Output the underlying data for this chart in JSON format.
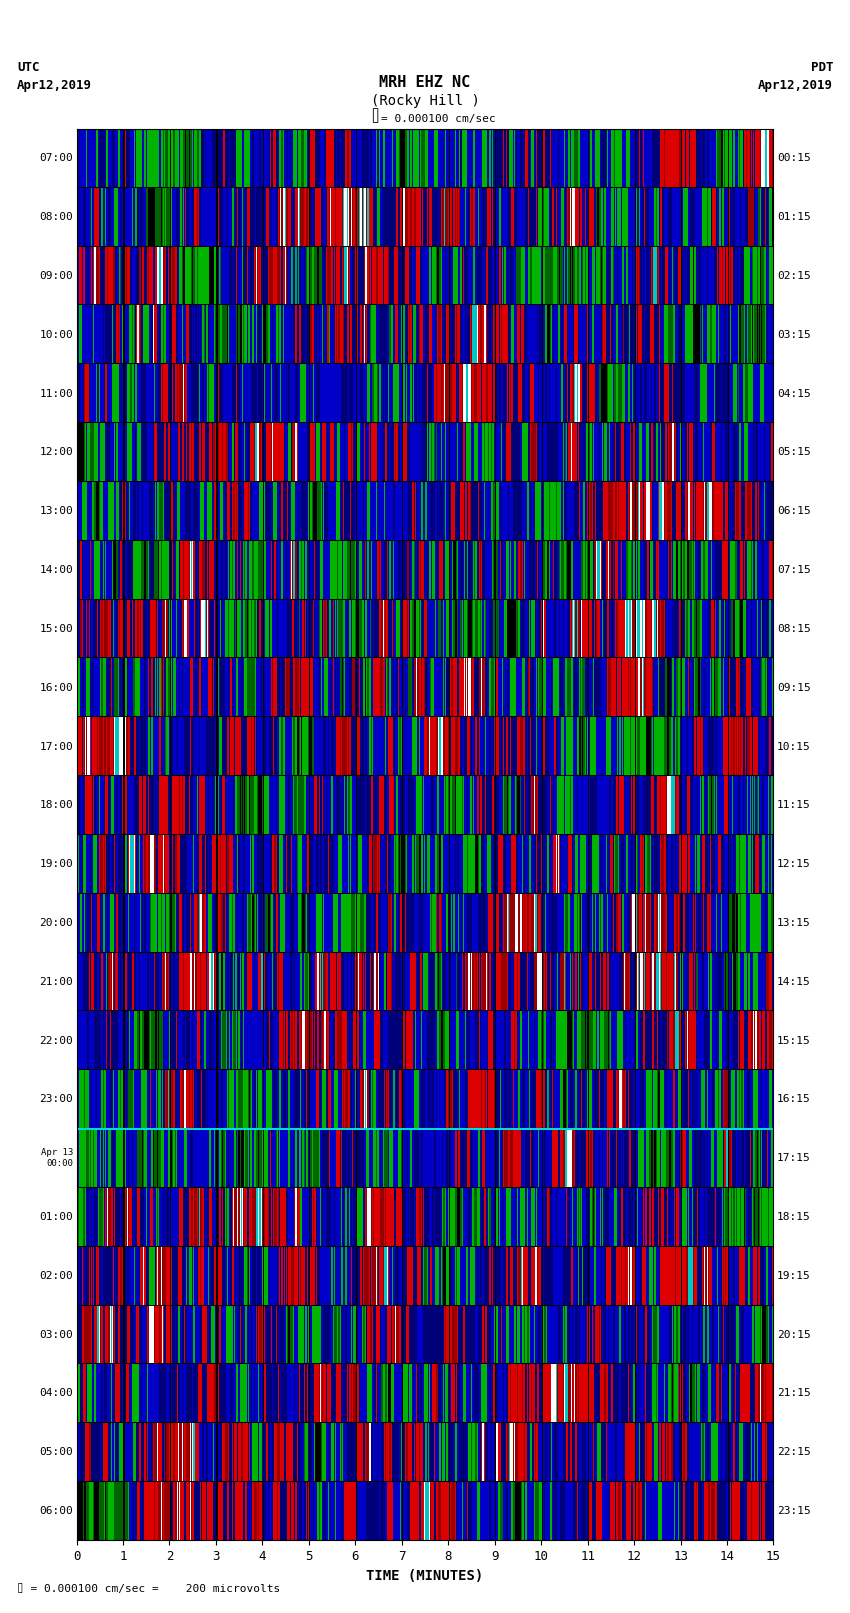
{
  "title_line1": "MRH EHZ NC",
  "title_line2": "(Rocky Hill )",
  "scale_text": "= 0.000100 cm/sec",
  "left_label_top": "UTC",
  "left_label_date": "Apr12,2019",
  "right_label_top": "PDT",
  "right_label_date": "Apr12,2019",
  "xlabel": "TIME (MINUTES)",
  "footer_text": "= 0.000100 cm/sec =    200 microvolts",
  "utc_times": [
    "07:00",
    "08:00",
    "09:00",
    "10:00",
    "11:00",
    "12:00",
    "13:00",
    "14:00",
    "15:00",
    "16:00",
    "17:00",
    "18:00",
    "19:00",
    "20:00",
    "21:00",
    "22:00",
    "23:00",
    "Apr 13\n00:00",
    "01:00",
    "02:00",
    "03:00",
    "04:00",
    "05:00",
    "06:00"
  ],
  "pdt_times": [
    "00:15",
    "01:15",
    "02:15",
    "03:15",
    "04:15",
    "05:15",
    "06:15",
    "07:15",
    "08:15",
    "09:15",
    "10:15",
    "11:15",
    "12:15",
    "13:15",
    "14:15",
    "15:15",
    "16:15",
    "17:15",
    "18:15",
    "19:15",
    "20:15",
    "21:15",
    "22:15",
    "23:15"
  ],
  "n_rows": 24,
  "n_minutes": 15,
  "background_color": "#ffffff",
  "font_name": "monospace",
  "fig_width": 8.5,
  "fig_height": 16.13,
  "dpi": 100
}
